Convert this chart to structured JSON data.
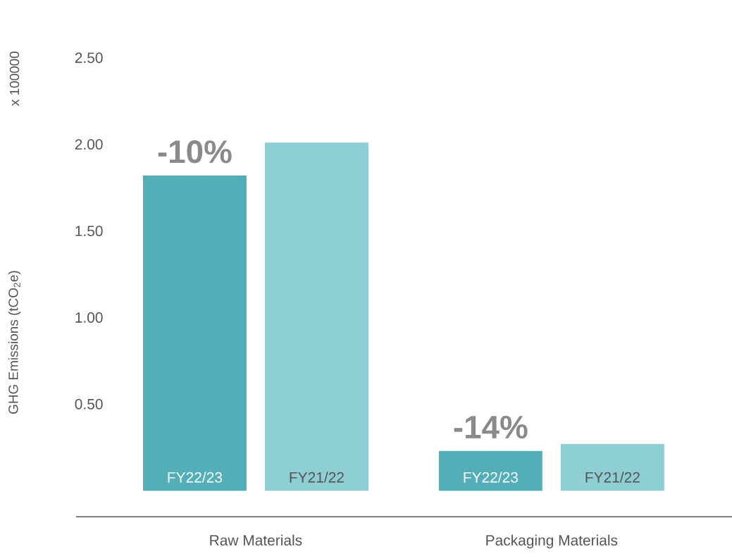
{
  "chart_data": {
    "type": "bar",
    "ylabel": "GHG Emissions (tCO$_{2}$e)",
    "categories": [
      "Raw Materials",
      "Packaging Materials"
    ],
    "series": [
      {
        "name": "FY22/23",
        "color": "#52afb8",
        "values": [
          1.82,
          0.23
        ]
      },
      {
        "name": "FY21/22",
        "color": "#8ecfd4",
        "values": [
          2.01,
          0.27
        ]
      }
    ],
    "ylim": [
      -0.15,
      2.5
    ],
    "yticks": [
      {
        "value": 0.5,
        "label": "0.50"
      },
      {
        "value": 1.0,
        "label": "1.00"
      },
      {
        "value": 1.5,
        "label": "1.50"
      },
      {
        "value": 2.0,
        "label": "2.00"
      },
      {
        "value": 2.5,
        "label": "2.50"
      }
    ],
    "annotations": [
      "x 100000",
      "-10%",
      "-14%"
    ],
    "grid": false
  }
}
